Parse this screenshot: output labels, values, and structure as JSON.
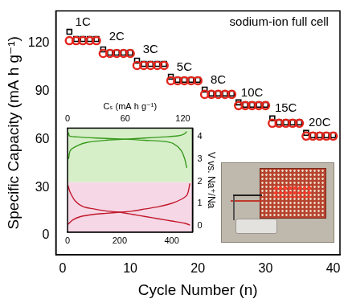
{
  "chart_data": [
    {
      "type": "scatter",
      "x_label": "Cycle Number (n)",
      "y_label": "Specific Capacity (mA h g⁻¹)",
      "xlim": [
        -1,
        41
      ],
      "xticks": [
        0,
        10,
        20,
        30,
        40
      ],
      "ylim": [
        -12,
        140
      ],
      "yticks": [
        0,
        30,
        60,
        90,
        120
      ],
      "grid": false,
      "annotations": [
        {
          "text": "sodium-ion full cell",
          "x": 32,
          "y": 133
        },
        {
          "text": "1C",
          "x": 3,
          "y": 133
        },
        {
          "text": "2C",
          "x": 8,
          "y": 124
        },
        {
          "text": "3C",
          "x": 13,
          "y": 116
        },
        {
          "text": "5C",
          "x": 18,
          "y": 105
        },
        {
          "text": "8C",
          "x": 23,
          "y": 97
        },
        {
          "text": "10C",
          "x": 28,
          "y": 89
        },
        {
          "text": "15C",
          "x": 33,
          "y": 79
        },
        {
          "text": "20C",
          "x": 38,
          "y": 70
        }
      ],
      "x": [
        1,
        2,
        3,
        4,
        5,
        6,
        7,
        8,
        9,
        10,
        11,
        12,
        13,
        14,
        15,
        16,
        17,
        18,
        19,
        20,
        21,
        22,
        23,
        24,
        25,
        26,
        27,
        28,
        29,
        30,
        31,
        32,
        33,
        34,
        35,
        36,
        37,
        38,
        39,
        40
      ],
      "series": [
        {
          "color": "#000000",
          "marker": "square",
          "values": [
            127,
            122.5,
            122.5,
            122.5,
            122.5,
            116,
            114,
            114,
            114,
            114,
            109,
            107,
            107,
            107,
            107,
            99,
            97,
            97,
            97,
            97,
            91,
            88.5,
            88.5,
            88.5,
            88.5,
            83,
            81.5,
            81.5,
            81.5,
            81.5,
            73,
            70.5,
            70.5,
            70.5,
            70.5,
            64,
            62.5,
            62.5,
            62.5,
            62.5
          ]
        },
        {
          "color": "#e3241b",
          "marker": "circle",
          "values": [
            121.5,
            121.5,
            121.5,
            121.5,
            121.5,
            113.5,
            113.5,
            113.5,
            113.5,
            113.5,
            106,
            106,
            106,
            106,
            106,
            96.5,
            96.5,
            96.5,
            96.5,
            96.5,
            88,
            88,
            88,
            88,
            88,
            81,
            81,
            81,
            81,
            81,
            70,
            70,
            70,
            70,
            70,
            62,
            62,
            62,
            62,
            62
          ]
        }
      ]
    },
    {
      "type": "line",
      "x2_label": "Cₛ (mA h g⁻¹)",
      "y_label": "V vs. Na⁺/Na",
      "xlim": [
        0,
        480
      ],
      "xticks": [
        0,
        200,
        400
      ],
      "x2lim": [
        0,
        130
      ],
      "x2ticks": [
        0,
        60,
        120
      ],
      "ylim": [
        -0.3,
        4.4
      ],
      "yticks": [
        0,
        1,
        2,
        3,
        4
      ],
      "grid": false,
      "series": [
        {
          "color": "#3a9a1e",
          "axis": "x2",
          "x": [
            1,
            3,
            10,
            20,
            40,
            60,
            80,
            100,
            115,
            122,
            124
          ],
          "values": [
            3.0,
            3.4,
            3.6,
            3.75,
            3.85,
            3.9,
            3.95,
            4.0,
            4.05,
            4.15,
            4.25
          ]
        },
        {
          "color": "#3a9a1e",
          "axis": "x2",
          "x": [
            1,
            2,
            10,
            30,
            60,
            80,
            100,
            110,
            118,
            122,
            124
          ],
          "values": [
            4.2,
            4.05,
            4.0,
            3.95,
            3.9,
            3.85,
            3.8,
            3.7,
            3.4,
            3.0,
            2.6
          ]
        },
        {
          "color": "#c0182a",
          "x": [
            2,
            10,
            30,
            60,
            100,
            150,
            200,
            250,
            300,
            350,
            400,
            450,
            470
          ],
          "values": [
            1.8,
            1.5,
            1.1,
            0.85,
            0.75,
            0.65,
            0.6,
            0.5,
            0.4,
            0.3,
            0.2,
            0.1,
            0.02
          ]
        },
        {
          "color": "#c0182a",
          "x": [
            2,
            20,
            50,
            100,
            150,
            200,
            250,
            300,
            350,
            400,
            440,
            460,
            470
          ],
          "values": [
            0.05,
            0.25,
            0.4,
            0.5,
            0.55,
            0.6,
            0.65,
            0.75,
            0.85,
            1.0,
            1.2,
            1.4,
            1.9
          ]
        }
      ]
    }
  ]
}
